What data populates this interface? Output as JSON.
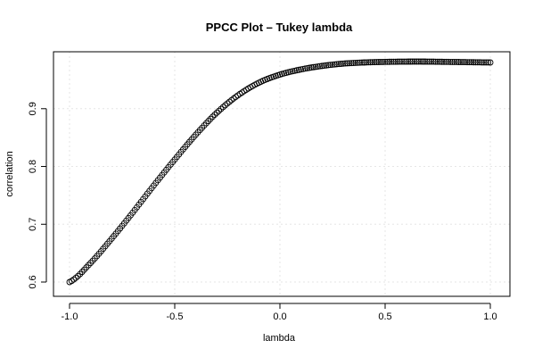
{
  "chart_data": {
    "type": "scatter",
    "title": "PPCC Plot – Tukey lambda",
    "xlabel": "lambda",
    "ylabel": "correlation",
    "xlim": [
      -1.0,
      1.0
    ],
    "ylim": [
      0.6,
      0.98
    ],
    "x_ticks": [
      "-1.0",
      "-0.5",
      "0.0",
      "0.5",
      "1.0"
    ],
    "y_ticks": [
      "0.6",
      "0.7",
      "0.8",
      "0.9"
    ],
    "grid": true,
    "marker": "open-circle",
    "point_count": 201,
    "x_step": 0.01,
    "anchor_points": [
      {
        "x": -1.0,
        "y": 0.6
      },
      {
        "x": -0.9,
        "y": 0.633
      },
      {
        "x": -0.8,
        "y": 0.675
      },
      {
        "x": -0.7,
        "y": 0.72
      },
      {
        "x": -0.6,
        "y": 0.767
      },
      {
        "x": -0.5,
        "y": 0.812
      },
      {
        "x": -0.4,
        "y": 0.855
      },
      {
        "x": -0.3,
        "y": 0.893
      },
      {
        "x": -0.2,
        "y": 0.923
      },
      {
        "x": -0.1,
        "y": 0.945
      },
      {
        "x": 0.0,
        "y": 0.959
      },
      {
        "x": 0.1,
        "y": 0.968
      },
      {
        "x": 0.2,
        "y": 0.974
      },
      {
        "x": 0.3,
        "y": 0.978
      },
      {
        "x": 0.4,
        "y": 0.98
      },
      {
        "x": 0.5,
        "y": 0.981
      },
      {
        "x": 0.6,
        "y": 0.9815
      },
      {
        "x": 0.7,
        "y": 0.9815
      },
      {
        "x": 0.8,
        "y": 0.981
      },
      {
        "x": 0.9,
        "y": 0.9805
      },
      {
        "x": 1.0,
        "y": 0.98
      }
    ]
  }
}
